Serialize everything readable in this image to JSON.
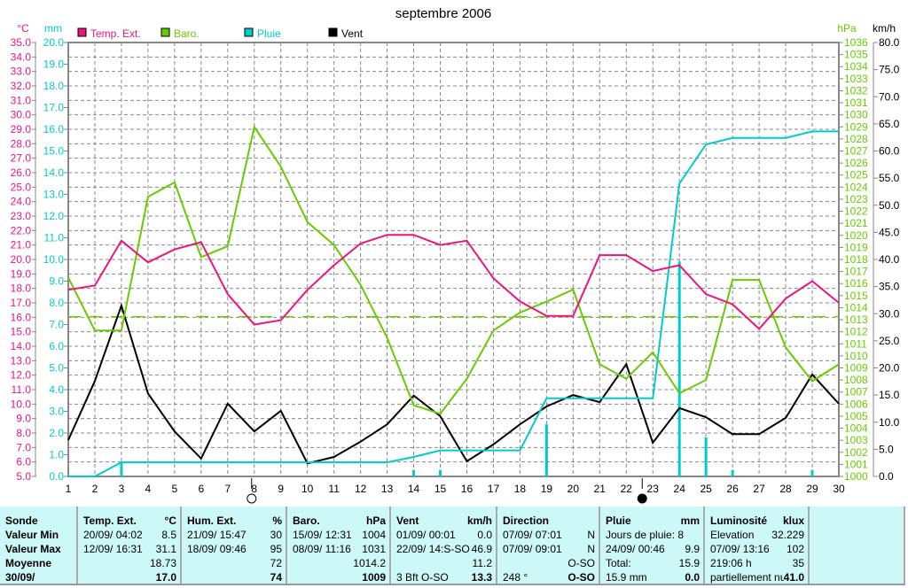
{
  "chart_data": {
    "type": "line",
    "title": "septembre 2006",
    "x": [
      1,
      2,
      3,
      4,
      5,
      6,
      7,
      8,
      9,
      10,
      11,
      12,
      13,
      14,
      15,
      16,
      17,
      18,
      19,
      20,
      21,
      22,
      23,
      24,
      25,
      26,
      27,
      28,
      29,
      30
    ],
    "xlim": [
      1,
      30
    ],
    "axes": {
      "temp": {
        "label": "°C",
        "range": [
          5,
          35
        ],
        "step": 1
      },
      "rain": {
        "label": "mm",
        "range": [
          0,
          20
        ],
        "step": 1
      },
      "baro": {
        "label": "hPa",
        "range": [
          1000,
          1036
        ],
        "step": 1
      },
      "wind": {
        "label": "km/h",
        "range": [
          0,
          80
        ],
        "step": 5
      }
    },
    "grid": true,
    "legend_placement": "top-left",
    "series": [
      {
        "name": "Temp. Ext.",
        "axis": "temp",
        "color": "#f0147a",
        "values": [
          17.9,
          18.2,
          21.3,
          19.8,
          20.7,
          21.2,
          17.6,
          15.5,
          15.8,
          17.9,
          19.6,
          21.1,
          21.7,
          21.7,
          21.0,
          21.3,
          18.7,
          17.1,
          16.1,
          16.1,
          20.3,
          20.3,
          19.2,
          19.6,
          17.6,
          16.9,
          15.2,
          17.3,
          18.5,
          17.0
        ]
      },
      {
        "name": "Baro.",
        "axis": "baro",
        "color": "#66cc00",
        "values": [
          1016.5,
          1012.1,
          1012.1,
          1023.2,
          1024.4,
          1018.2,
          1019.1,
          1029.0,
          1025.7,
          1021.1,
          1019.2,
          1015.9,
          1011.5,
          1005.9,
          1005.2,
          1008.1,
          1012.1,
          1013.6,
          1014.5,
          1015.5,
          1009.3,
          1008.1,
          1010.3,
          1006.9,
          1008.0,
          1016.3,
          1016.3,
          1010.7,
          1007.9,
          1009.3
        ]
      },
      {
        "name": "Pluie",
        "axis": "rain",
        "color": "#00cccc",
        "values": [
          0,
          0,
          0.65,
          0.65,
          0.65,
          0.65,
          0.65,
          0.65,
          0.65,
          0.65,
          0.65,
          0.65,
          0.65,
          0.9,
          1.2,
          1.2,
          1.2,
          1.2,
          3.6,
          3.6,
          3.6,
          3.6,
          3.6,
          13.5,
          15.3,
          15.6,
          15.6,
          15.6,
          15.9,
          15.9
        ]
      },
      {
        "name": "Vent",
        "axis": "wind",
        "color": "#000000",
        "values": [
          6.7,
          17.6,
          31.5,
          15.3,
          8.3,
          3.3,
          13.4,
          8.3,
          12.1,
          2.4,
          3.6,
          6.4,
          9.6,
          14.9,
          11.1,
          2.8,
          5.9,
          9.6,
          12.9,
          15.0,
          13.7,
          20.7,
          6.2,
          12.6,
          10.9,
          7.8,
          7.8,
          10.8,
          18.8,
          13.4
        ]
      }
    ],
    "daily_rain": {
      "axis": "rain",
      "color": "#00cccc",
      "days": [
        3,
        14,
        15,
        19,
        24,
        25,
        26,
        29
      ],
      "values": [
        0.65,
        0.3,
        0.3,
        2.4,
        9.9,
        1.8,
        0.3,
        0.3
      ]
    },
    "baro_reference": {
      "value": 1013.25,
      "color": "#66cc00"
    },
    "moon_phases": [
      {
        "day": 7.9,
        "phase": "full"
      },
      {
        "day": 22.6,
        "phase": "new"
      }
    ]
  },
  "summary": {
    "sonde": {
      "title": "Sonde",
      "rows": [
        "Valeur Min",
        "Valeur Max",
        "Moyenne",
        "30/09/"
      ]
    },
    "temp": {
      "title": "Temp. Ext.",
      "unit": "°C",
      "min_date": "20/09/  04:02",
      "min": "8.5",
      "max_date": "12/09/  16:31",
      "max": "31.1",
      "avg": "18.73",
      "current": "17.0"
    },
    "hum": {
      "title": "Hum. Ext.",
      "unit": "%",
      "min_date": "21/09/  15:47",
      "min": "30",
      "max_date": "18/09/  09:46",
      "max": "95",
      "avg": "72",
      "current": "74"
    },
    "baro": {
      "title": "Baro.",
      "unit": "hPa",
      "min_date": "15/09/  12:31",
      "min": "1004",
      "max_date": "08/09/  11:16",
      "max": "1031",
      "avg": "1014.2",
      "current": "1009"
    },
    "vent": {
      "title": "Vent",
      "unit": "km/h",
      "min_date": "01/09/  00:01",
      "min": "0.0",
      "max_date": "22/09/  14:S-SO",
      "max": "46.9",
      "avg": "11.2",
      "current_label": "3 Bft O-SO",
      "current": "13.3"
    },
    "direction": {
      "title": "Direction",
      "min_date": "07/09/  07:01",
      "min": "N",
      "max_date": "07/09/  09:01",
      "max": "N",
      "avg": "O-SO",
      "current_label": "248 °",
      "current": "O-SO"
    },
    "pluie": {
      "title": "Pluie",
      "unit": "mm",
      "r1": "Jours de pluie: 8",
      "max_date": "24/09/  00:46",
      "max": "9.9",
      "total_label": "Total:",
      "total": "15.9",
      "current_label": "15.9 mm",
      "current": "0.0"
    },
    "lum": {
      "title": "Luminosité",
      "unit": "klux",
      "r1_label": "Elevation",
      "r1": "32.229",
      "max_date": "07/09/  13:16",
      "max": "102",
      "r3_label": "219:06 h",
      "r3": "35",
      "current_label": "partiellement nua",
      "current": "41.0"
    }
  }
}
